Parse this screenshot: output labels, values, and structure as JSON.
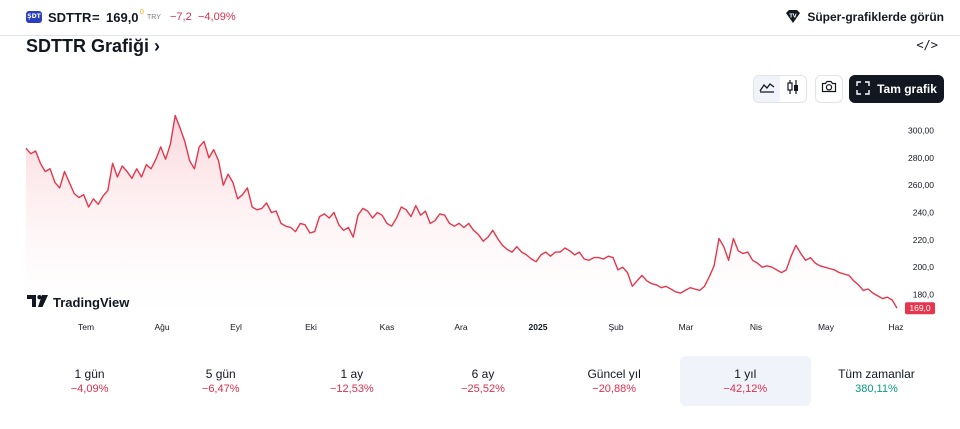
{
  "header": {
    "logo_text": "ŞDT",
    "symbol": "SDTTR",
    "separator": "=",
    "price": "169,0",
    "price_marker": "0",
    "currency": "TRY",
    "change": "−7,2",
    "change_percent": "−4,09%",
    "super_charts_label": "Süper-grafiklerde görün"
  },
  "title": "SDTTR Grafiği ›",
  "embed_label": "</>",
  "toolbar": {
    "full_chart_label": "Tam grafik",
    "chart_style_active": "area"
  },
  "watermark": "TradingView",
  "colors": {
    "line": "#e5364c",
    "fill_top": "#fbd4d9",
    "negative": "#d9304f",
    "positive": "#089981",
    "price_label_bg": "#e5364c"
  },
  "chart_data": {
    "type": "area",
    "x_ticks": [
      "Tem",
      "Ağu",
      "Eyl",
      "Eki",
      "Kas",
      "Ara",
      "2025",
      "Şub",
      "Mar",
      "Nis",
      "May",
      "Haz"
    ],
    "y_ticks": [
      "300,00",
      "280,00",
      "260,00",
      "240,0",
      "220,0",
      "200,0",
      "180,0"
    ],
    "last_price_label": "169,0",
    "ylim": [
      165,
      315
    ],
    "values": [
      287,
      283,
      285,
      276,
      270,
      272,
      262,
      258,
      270,
      262,
      254,
      251,
      253,
      244,
      250,
      246,
      252,
      256,
      276,
      266,
      274,
      270,
      265,
      272,
      266,
      275,
      272,
      279,
      288,
      279,
      290,
      311,
      302,
      292,
      278,
      272,
      288,
      292,
      280,
      286,
      278,
      260,
      268,
      262,
      250,
      253,
      258,
      244,
      242,
      243,
      247,
      240,
      241,
      232,
      230,
      229,
      226,
      232,
      231,
      225,
      226,
      237,
      239,
      236,
      240,
      231,
      227,
      229,
      222,
      238,
      243,
      241,
      236,
      240,
      238,
      232,
      230,
      236,
      244,
      242,
      237,
      245,
      238,
      241,
      232,
      234,
      239,
      238,
      232,
      230,
      232,
      229,
      232,
      227,
      224,
      219,
      222,
      227,
      221,
      216,
      213,
      211,
      215,
      211,
      209,
      206,
      204,
      209,
      211,
      208,
      211,
      211,
      214,
      212,
      209,
      211,
      206,
      205,
      207,
      207,
      206,
      208,
      207,
      198,
      200,
      196,
      186,
      190,
      194,
      190,
      188,
      187,
      185,
      186,
      184,
      182,
      181,
      183,
      185,
      184,
      183,
      186,
      193,
      201,
      221,
      215,
      205,
      221,
      212,
      210,
      211,
      205,
      203,
      200,
      201,
      200,
      198,
      196,
      198,
      208,
      216,
      210,
      205,
      207,
      203,
      201,
      200,
      199,
      198,
      196,
      195,
      194,
      190,
      187,
      183,
      184,
      181,
      179,
      177,
      178,
      176,
      170
    ],
    "grid": false
  },
  "periods": [
    {
      "label": "1 gün",
      "value": "−4,09%",
      "tone": "negative"
    },
    {
      "label": "5 gün",
      "value": "−6,47%",
      "tone": "negative"
    },
    {
      "label": "1 ay",
      "value": "−12,53%",
      "tone": "negative"
    },
    {
      "label": "6 ay",
      "value": "−25,52%",
      "tone": "negative"
    },
    {
      "label": "Güncel yıl",
      "value": "−20,88%",
      "tone": "negative"
    },
    {
      "label": "1 yıl",
      "value": "−42,12%",
      "tone": "negative",
      "active": true
    },
    {
      "label": "Tüm zamanlar",
      "value": "380,11%",
      "tone": "positive"
    }
  ]
}
